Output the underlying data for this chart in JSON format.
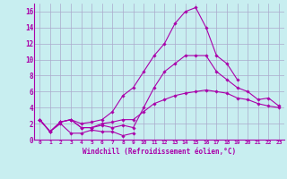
{
  "xlabel": "Windchill (Refroidissement éolien,°C)",
  "background_color": "#c8eef0",
  "line_color": "#aa00aa",
  "grid_color": "#aaaacc",
  "xlim": [
    -0.5,
    23.5
  ],
  "ylim": [
    0,
    17
  ],
  "xticks": [
    0,
    1,
    2,
    3,
    4,
    5,
    6,
    7,
    8,
    9,
    10,
    11,
    12,
    13,
    14,
    15,
    16,
    17,
    18,
    19,
    20,
    21,
    22,
    23
  ],
  "yticks": [
    0,
    2,
    4,
    6,
    8,
    10,
    12,
    14,
    16
  ],
  "series": [
    {
      "x": [
        0,
        1,
        2,
        3,
        4,
        5,
        6,
        7,
        8,
        9
      ],
      "y": [
        2.5,
        1.0,
        2.0,
        0.8,
        0.8,
        1.2,
        1.0,
        1.0,
        0.5,
        0.8
      ]
    },
    {
      "x": [
        0,
        1,
        2,
        3,
        4,
        5,
        6,
        7,
        8,
        9,
        10,
        11,
        12,
        13,
        14,
        15,
        16,
        17,
        18,
        19,
        20,
        21,
        22,
        23
      ],
      "y": [
        2.5,
        1.0,
        2.2,
        2.5,
        1.5,
        1.5,
        1.8,
        1.5,
        1.8,
        1.5,
        4.0,
        6.5,
        8.5,
        9.5,
        10.5,
        10.5,
        10.5,
        8.5,
        7.5,
        6.5,
        6.0,
        5.0,
        5.2,
        4.2
      ]
    },
    {
      "x": [
        0,
        1,
        2,
        3,
        4,
        5,
        6,
        7,
        8,
        9,
        10,
        11,
        12,
        13,
        14,
        15,
        16,
        17,
        18,
        19
      ],
      "y": [
        2.5,
        1.0,
        2.2,
        2.5,
        2.0,
        2.2,
        2.5,
        3.5,
        5.5,
        6.5,
        8.5,
        10.5,
        12.0,
        14.5,
        16.0,
        16.5,
        14.0,
        10.5,
        9.5,
        7.5
      ]
    },
    {
      "x": [
        0,
        1,
        2,
        3,
        4,
        5,
        6,
        7,
        8,
        9,
        10,
        11,
        12,
        13,
        14,
        15,
        16,
        17,
        18,
        19,
        20,
        21,
        22,
        23
      ],
      "y": [
        2.5,
        1.0,
        2.2,
        2.5,
        1.5,
        1.5,
        2.0,
        2.2,
        2.5,
        2.5,
        3.5,
        4.5,
        5.0,
        5.5,
        5.8,
        6.0,
        6.2,
        6.0,
        5.8,
        5.2,
        5.0,
        4.5,
        4.2,
        4.0
      ]
    }
  ]
}
